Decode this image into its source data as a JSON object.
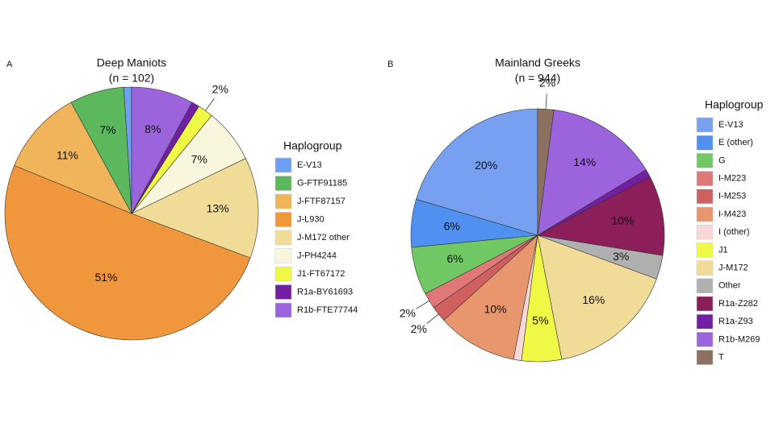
{
  "chart_data": [
    {
      "type": "pie",
      "label": "A",
      "title": "Deep Maniots",
      "subtitle": "(n = 102)",
      "legend_title": "Haplogroup",
      "categories": [
        "E-V13",
        "G-FTF91185",
        "J-FTF87157",
        "J-L930",
        "J-M172 other",
        "J-PH4244",
        "J1-FT67172",
        "R1a-BY61693",
        "R1b-FTE77744"
      ],
      "values": [
        1,
        7,
        11,
        51,
        13,
        7,
        2,
        1,
        8
      ],
      "value_labels": [
        null,
        "7%",
        "11%",
        "51%",
        "13%",
        "7%",
        "2%",
        null,
        "8%"
      ],
      "colors": [
        "#6fa0f0",
        "#5cb85c",
        "#f0b45a",
        "#f0963c",
        "#f0dc96",
        "#f8f6dc",
        "#f0f846",
        "#7020a0",
        "#9b64dc"
      ]
    },
    {
      "type": "pie",
      "label": "B",
      "title": "Mainland Greeks",
      "subtitle": "(n = 944)",
      "legend_title": "Haplogroup",
      "categories": [
        "E-V13",
        "E (other)",
        "G",
        "I-M223",
        "I-M253",
        "I-M423",
        "I (other)",
        "J1",
        "J-M172",
        "Other",
        "R1a-Z282",
        "R1a-Z93",
        "R1b-M269",
        "T"
      ],
      "values": [
        20,
        6,
        6,
        2,
        2,
        10,
        1,
        5,
        16,
        3,
        10,
        1,
        14,
        2
      ],
      "value_labels": [
        "20%",
        "6%",
        "6%",
        "2%",
        "2%",
        "10%",
        null,
        "5%",
        "16%",
        "3%",
        "10%",
        null,
        "14%",
        "2%"
      ],
      "colors": [
        "#78a0f0",
        "#5090f0",
        "#70c864",
        "#e07878",
        "#d06060",
        "#e8966e",
        "#f8d8d8",
        "#f0f846",
        "#f0dc96",
        "#b0b0b0",
        "#8c1e5a",
        "#7020a0",
        "#9b64dc",
        "#8c7060"
      ]
    }
  ]
}
